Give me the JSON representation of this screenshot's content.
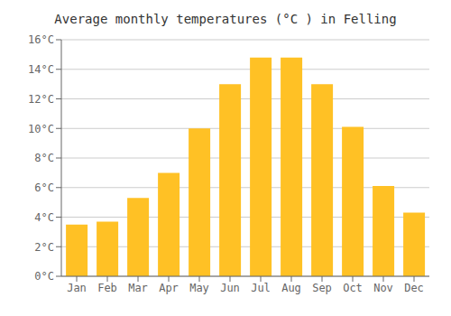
{
  "chart_data": {
    "type": "bar",
    "title": "Average monthly temperatures (°C ) in Felling",
    "categories": [
      "Jan",
      "Feb",
      "Mar",
      "Apr",
      "May",
      "Jun",
      "Jul",
      "Aug",
      "Sep",
      "Oct",
      "Nov",
      "Dec"
    ],
    "values": [
      3.5,
      3.7,
      5.3,
      7.0,
      10.0,
      13.0,
      14.8,
      14.8,
      13.0,
      10.1,
      6.1,
      4.3
    ],
    "color": "#FFC125",
    "ylim": [
      0,
      16
    ],
    "yticks": [
      {
        "value": 0,
        "label": "0°C"
      },
      {
        "value": 2,
        "label": "2°C"
      },
      {
        "value": 4,
        "label": "4°C"
      },
      {
        "value": 6,
        "label": "6°C"
      },
      {
        "value": 8,
        "label": "8°C"
      },
      {
        "value": 10,
        "label": "10°C"
      },
      {
        "value": 12,
        "label": "12°C"
      },
      {
        "value": 14,
        "label": "14°C"
      },
      {
        "value": 16,
        "label": "16°C"
      }
    ],
    "grid": true
  }
}
